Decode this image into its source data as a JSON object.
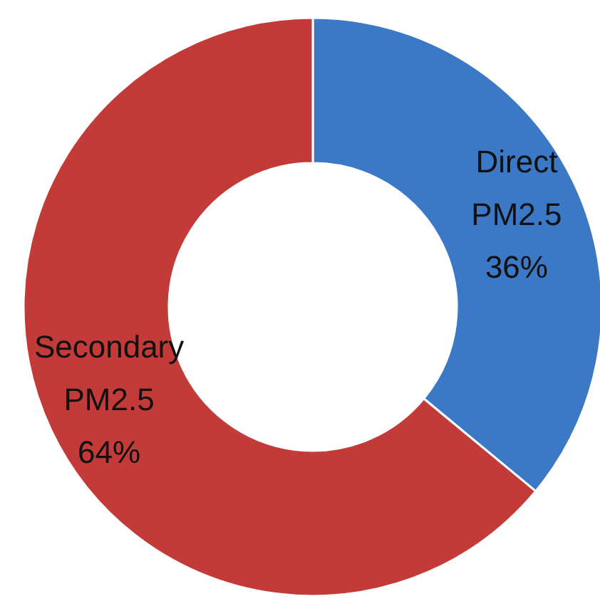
{
  "chart_data": {
    "type": "donut",
    "categories": [
      "Direct PM2.5",
      "Secondary PM2.5"
    ],
    "values": [
      36,
      64
    ],
    "value_labels": [
      "36%",
      "64%"
    ],
    "colors": [
      "#3b78c6",
      "#c23b39"
    ]
  }
}
